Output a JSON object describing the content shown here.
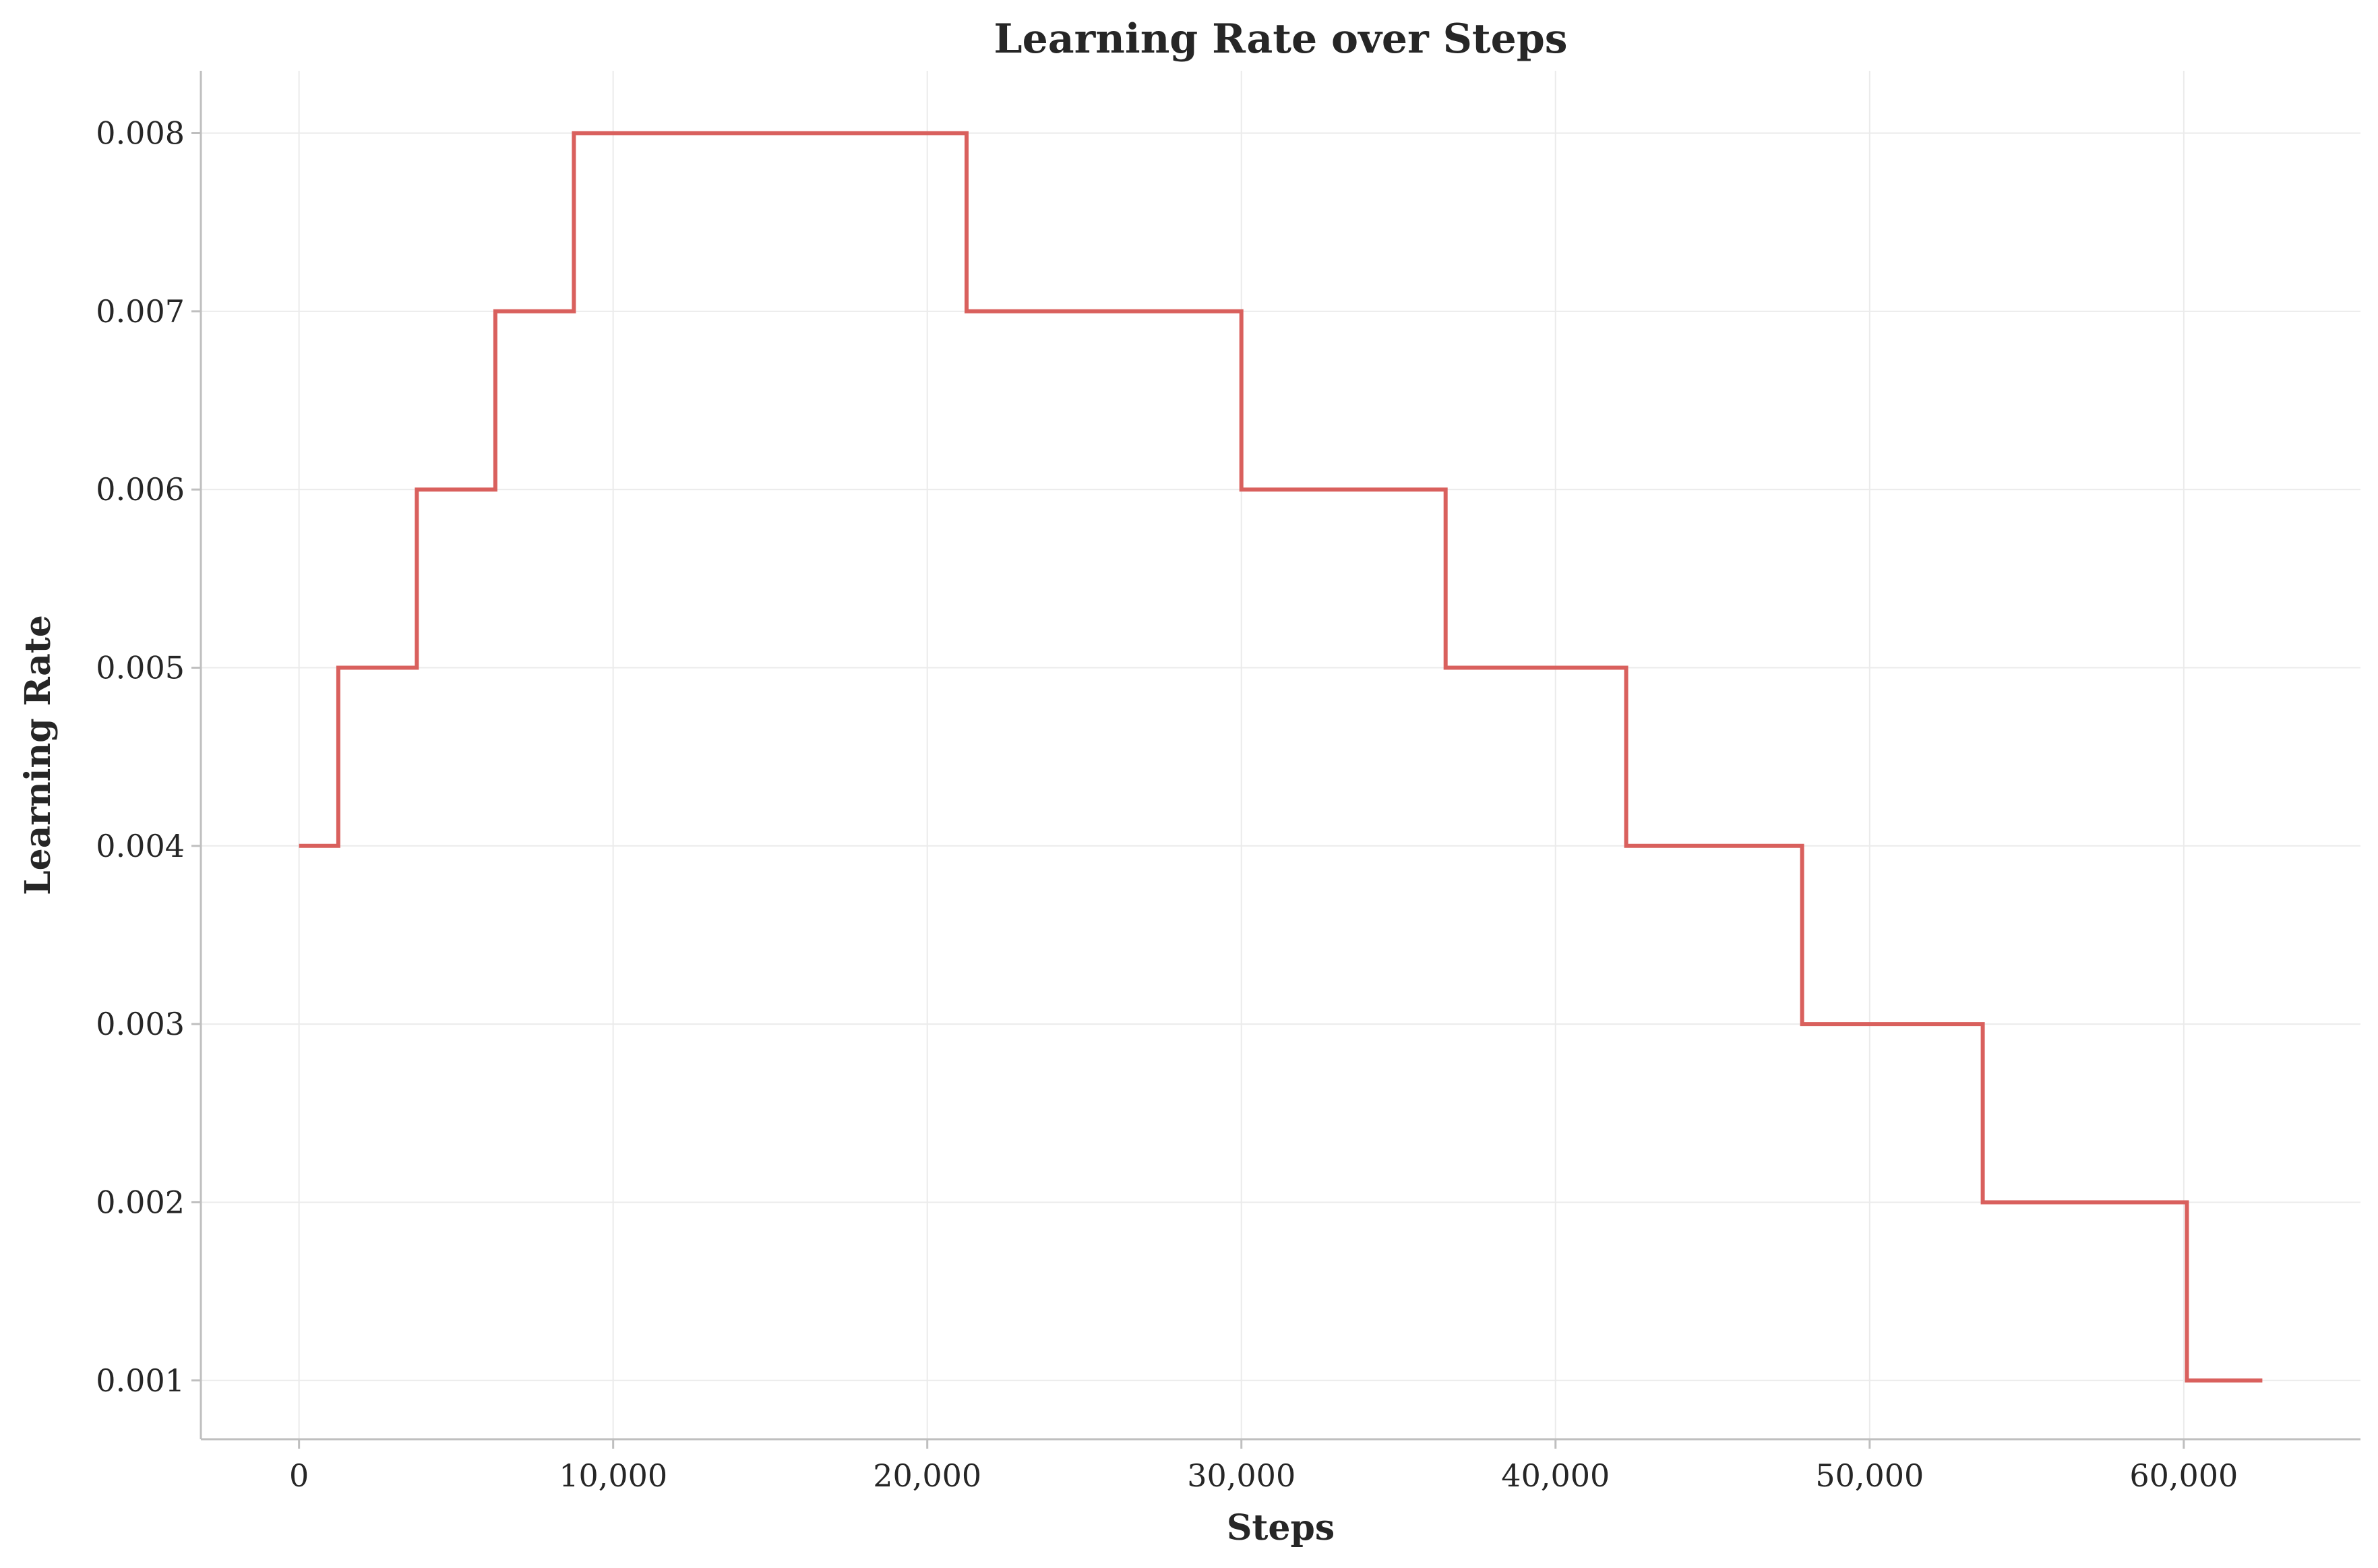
{
  "chart_data": {
    "type": "line",
    "title": "Learning Rate over Steps",
    "xlabel": "Steps",
    "ylabel": "Learning Rate",
    "xlim": [
      -3125,
      65625
    ],
    "ylim": [
      0.00067,
      0.00835
    ],
    "xticks": [
      0,
      10000,
      20000,
      30000,
      40000,
      50000,
      60000
    ],
    "xtick_labels": [
      "0",
      "10,000",
      "20,000",
      "30,000",
      "40,000",
      "50,000",
      "60,000"
    ],
    "yticks": [
      0.001,
      0.002,
      0.003,
      0.004,
      0.005,
      0.006,
      0.007,
      0.008
    ],
    "ytick_labels": [
      "0.001",
      "0.002",
      "0.003",
      "0.004",
      "0.005",
      "0.006",
      "0.007",
      "0.008"
    ],
    "grid": true,
    "colors": {
      "line": "#d9605d"
    },
    "series": [
      {
        "x": [
          0,
          1250,
          1250,
          3750,
          3750,
          6250,
          6250,
          8750,
          8750,
          21250,
          21250,
          30000,
          30000,
          36500,
          36500,
          42250,
          42250,
          47850,
          47850,
          53600,
          53600,
          60100,
          60100,
          62500
        ],
        "values": [
          0.004,
          0.004,
          0.005,
          0.005,
          0.006,
          0.006,
          0.007,
          0.007,
          0.008,
          0.008,
          0.007,
          0.007,
          0.006,
          0.006,
          0.005,
          0.005,
          0.004,
          0.004,
          0.003,
          0.003,
          0.002,
          0.002,
          0.001,
          0.001
        ]
      }
    ]
  }
}
